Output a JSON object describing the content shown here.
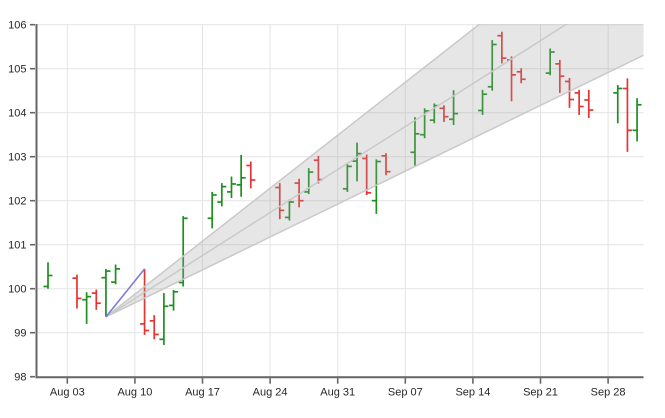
{
  "chart_data": {
    "type": "ohlc",
    "title": "",
    "xlabel": "",
    "ylabel": "",
    "legend": false,
    "grid": true,
    "x_axis": {
      "tick_labels": [
        "Aug 03",
        "Aug 10",
        "Aug 17",
        "Aug 24",
        "Aug 31",
        "Sep 07",
        "Sep 14",
        "Sep 21",
        "Sep 28"
      ],
      "tick_days": [
        2,
        9,
        16,
        23,
        30,
        37,
        44,
        51,
        58
      ],
      "day_zero_date": "Aug 01"
    },
    "y_axis": {
      "min": 98,
      "max": 106,
      "ticks": [
        98,
        99,
        100,
        101,
        102,
        103,
        104,
        105,
        106
      ]
    },
    "bars_format": [
      "date",
      "day",
      "open",
      "high",
      "low",
      "close",
      "direction"
    ],
    "bars": [
      [
        "Aug 01",
        0,
        100.05,
        100.6,
        100.0,
        100.3,
        "up"
      ],
      [
        "Aug 04",
        3,
        100.24,
        100.32,
        99.55,
        99.78,
        "down"
      ],
      [
        "Aug 05",
        4,
        99.75,
        99.92,
        99.2,
        99.82,
        "up"
      ],
      [
        "Aug 06",
        5,
        99.9,
        99.98,
        99.52,
        99.67,
        "down"
      ],
      [
        "Aug 07",
        6,
        100.25,
        100.45,
        99.36,
        100.4,
        "up"
      ],
      [
        "Aug 08",
        7,
        100.15,
        100.55,
        100.1,
        100.45,
        "up"
      ],
      [
        "Aug 11",
        10,
        99.2,
        100.45,
        98.95,
        99.05,
        "down"
      ],
      [
        "Aug 12",
        11,
        99.27,
        99.4,
        98.85,
        98.96,
        "down"
      ],
      [
        "Aug 13",
        12,
        98.85,
        99.9,
        98.72,
        99.6,
        "up"
      ],
      [
        "Aug 14",
        13,
        99.62,
        99.97,
        99.5,
        99.93,
        "up"
      ],
      [
        "Aug 15",
        14,
        100.14,
        101.65,
        100.05,
        101.6,
        "up"
      ],
      [
        "Aug 18",
        17,
        101.6,
        102.2,
        101.37,
        102.13,
        "up"
      ],
      [
        "Aug 19",
        18,
        101.97,
        102.4,
        101.87,
        102.32,
        "up"
      ],
      [
        "Aug 20",
        19,
        102.2,
        102.55,
        102.06,
        102.38,
        "up"
      ],
      [
        "Aug 21",
        20,
        102.36,
        103.04,
        102.09,
        102.52,
        "up"
      ],
      [
        "Aug 22",
        21,
        102.8,
        102.89,
        102.28,
        102.47,
        "down"
      ],
      [
        "Aug 25",
        24,
        102.3,
        102.4,
        101.58,
        101.78,
        "down"
      ],
      [
        "Aug 26",
        25,
        101.62,
        102.03,
        101.55,
        101.97,
        "up"
      ],
      [
        "Aug 27",
        26,
        102.4,
        102.5,
        101.85,
        102.0,
        "down"
      ],
      [
        "Aug 28",
        27,
        102.2,
        102.74,
        102.15,
        102.65,
        "up"
      ],
      [
        "Aug 29",
        28,
        102.92,
        103.02,
        102.39,
        102.48,
        "down"
      ],
      [
        "Sep 01",
        31,
        102.27,
        102.83,
        102.2,
        102.78,
        "up"
      ],
      [
        "Sep 02",
        32,
        102.9,
        103.32,
        102.44,
        103.07,
        "up"
      ],
      [
        "Sep 03",
        33,
        102.96,
        103.05,
        102.13,
        102.18,
        "down"
      ],
      [
        "Sep 04",
        34,
        102.0,
        102.94,
        101.7,
        102.89,
        "up"
      ],
      [
        "Sep 05",
        35,
        103.02,
        103.08,
        102.58,
        102.66,
        "down"
      ],
      [
        "Sep 08",
        38,
        103.1,
        103.9,
        102.8,
        103.52,
        "up"
      ],
      [
        "Sep 09",
        39,
        103.5,
        104.1,
        103.42,
        104.04,
        "up"
      ],
      [
        "Sep 10",
        40,
        103.83,
        104.21,
        103.76,
        104.16,
        "up"
      ],
      [
        "Sep 11",
        41,
        104.1,
        104.17,
        103.79,
        103.91,
        "down"
      ],
      [
        "Sep 12",
        42,
        103.85,
        104.51,
        103.72,
        103.98,
        "up"
      ],
      [
        "Sep 15",
        45,
        104.05,
        104.52,
        103.95,
        104.42,
        "up"
      ],
      [
        "Sep 16",
        46,
        104.59,
        105.65,
        104.5,
        105.55,
        "up"
      ],
      [
        "Sep 17",
        47,
        105.75,
        105.84,
        105.12,
        105.24,
        "down"
      ],
      [
        "Sep 18",
        48,
        105.2,
        105.28,
        104.26,
        104.86,
        "down"
      ],
      [
        "Sep 19",
        49,
        104.93,
        105.01,
        104.67,
        104.76,
        "down"
      ],
      [
        "Sep 22",
        52,
        104.9,
        105.46,
        104.85,
        105.38,
        "up"
      ],
      [
        "Sep 23",
        53,
        105.11,
        105.2,
        104.45,
        104.83,
        "down"
      ],
      [
        "Sep 24",
        54,
        104.71,
        104.79,
        104.11,
        104.3,
        "down"
      ],
      [
        "Sep 25",
        55,
        104.45,
        104.52,
        103.95,
        104.14,
        "down"
      ],
      [
        "Sep 26",
        56,
        104.29,
        104.52,
        103.88,
        104.06,
        "down"
      ],
      [
        "Sep 29",
        59,
        104.45,
        104.63,
        103.76,
        104.55,
        "up"
      ],
      [
        "Sep 30",
        60,
        104.55,
        104.78,
        103.11,
        103.6,
        "down"
      ],
      [
        "Oct 01",
        61,
        103.6,
        104.33,
        103.35,
        104.18,
        "up"
      ]
    ],
    "overlays": {
      "trendline": {
        "from_day": 6,
        "from_price": 99.36,
        "to_day": 10,
        "to_price": 100.45,
        "color": "#7b7be0"
      },
      "fan": {
        "apex_day": 6,
        "apex_price": 99.36,
        "rays_price_per_day": {
          "upper": 0.172,
          "middle": 0.1395,
          "lower": 0.1068
        },
        "fill": "rgba(158,158,158,0.26)",
        "line_color": "#c9c9c9"
      }
    },
    "colors": {
      "up": "#1f8f1f",
      "down": "#e63333",
      "grid": "#e3e3e3",
      "axis": "#666666",
      "label": "#262626",
      "background": "#ffffff"
    }
  }
}
